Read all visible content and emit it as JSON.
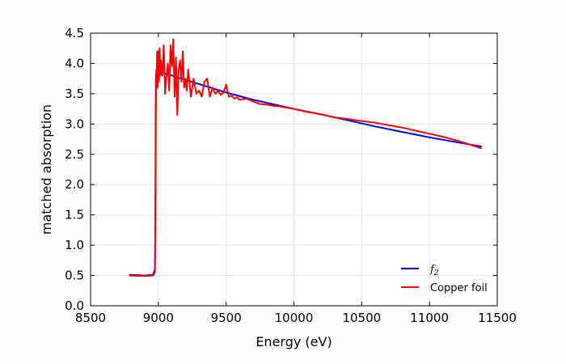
{
  "chart_data": {
    "type": "line",
    "title": "",
    "xlabel": "Energy (eV)",
    "ylabel": "matched absorption",
    "xlim": [
      8500,
      11500
    ],
    "ylim": [
      0.0,
      4.5
    ],
    "xticks": [
      8500,
      9000,
      9500,
      10000,
      10500,
      11000,
      11500
    ],
    "yticks": [
      0.0,
      0.5,
      1.0,
      1.5,
      2.0,
      2.5,
      3.0,
      3.5,
      4.0,
      4.5
    ],
    "xtick_labels": [
      "8500",
      "9000",
      "9500",
      "10000",
      "10500",
      "11000",
      "11500"
    ],
    "ytick_labels": [
      "0.0",
      "0.5",
      "1.0",
      "1.5",
      "2.0",
      "2.5",
      "3.0",
      "3.5",
      "4.0",
      "4.5"
    ],
    "grid": true,
    "legend_position": "lower-right",
    "series": [
      {
        "name": "f",
        "subscript": "2",
        "color": "#0000ff",
        "x": [
          8790,
          8900,
          8960,
          8975,
          8978,
          8980,
          8982,
          8985,
          9000,
          9100,
          9200,
          9300,
          9400,
          9500,
          9600,
          9700,
          9800,
          9900,
          10000,
          10200,
          10400,
          10600,
          10800,
          11000,
          11200,
          11380
        ],
        "y": [
          0.51,
          0.5,
          0.51,
          0.6,
          1.4,
          3.0,
          3.75,
          3.85,
          3.87,
          3.8,
          3.73,
          3.66,
          3.59,
          3.52,
          3.46,
          3.4,
          3.35,
          3.3,
          3.25,
          3.16,
          3.06,
          2.96,
          2.87,
          2.78,
          2.7,
          2.63
        ]
      },
      {
        "name": "Copper foil",
        "color": "#ff0000",
        "x": [
          8790,
          8900,
          8960,
          8975,
          8978,
          8980,
          8982,
          8985,
          8988,
          8991,
          8995,
          9000,
          9005,
          9010,
          9015,
          9020,
          9025,
          9030,
          9040,
          9050,
          9060,
          9070,
          9080,
          9090,
          9100,
          9110,
          9120,
          9130,
          9140,
          9150,
          9160,
          9170,
          9180,
          9190,
          9200,
          9210,
          9220,
          9240,
          9260,
          9280,
          9300,
          9320,
          9340,
          9360,
          9380,
          9400,
          9420,
          9440,
          9460,
          9480,
          9500,
          9520,
          9540,
          9560,
          9580,
          9600,
          9650,
          9700,
          9750,
          9800,
          9850,
          9900,
          10000,
          10100,
          10200,
          10300,
          10400,
          10500,
          10600,
          10700,
          10800,
          10900,
          11000,
          11100,
          11200,
          11300,
          11380
        ],
        "y": [
          0.5,
          0.49,
          0.5,
          0.55,
          1.2,
          2.3,
          3.2,
          3.9,
          3.8,
          4.2,
          3.6,
          4.2,
          3.7,
          4.25,
          3.8,
          4.05,
          3.85,
          3.8,
          4.3,
          3.5,
          3.8,
          4.0,
          3.55,
          4.3,
          3.95,
          4.4,
          3.45,
          4.1,
          3.15,
          3.9,
          4.05,
          3.7,
          4.2,
          3.6,
          3.75,
          3.55,
          3.9,
          3.45,
          3.75,
          3.5,
          3.55,
          3.45,
          3.7,
          3.75,
          3.45,
          3.6,
          3.5,
          3.55,
          3.48,
          3.52,
          3.65,
          3.45,
          3.47,
          3.42,
          3.44,
          3.4,
          3.42,
          3.37,
          3.33,
          3.32,
          3.3,
          3.29,
          3.25,
          3.2,
          3.16,
          3.11,
          3.08,
          3.05,
          3.02,
          2.98,
          2.94,
          2.89,
          2.84,
          2.79,
          2.73,
          2.66,
          2.6
        ]
      }
    ]
  }
}
